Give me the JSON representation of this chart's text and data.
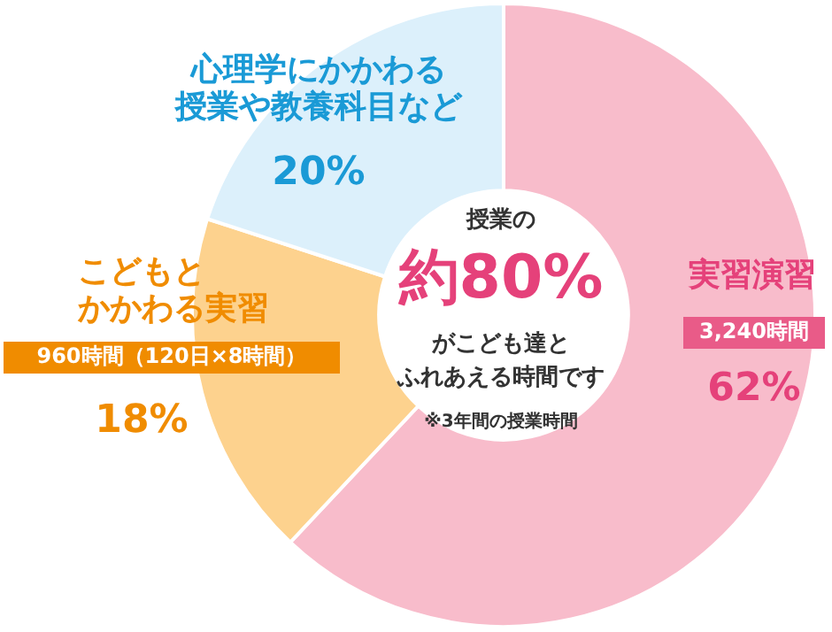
{
  "chart_data": {
    "type": "donut",
    "categories": [
      "実習演習",
      "こどもとかかわる実習",
      "心理学にかかわる授業や教養科目など"
    ],
    "values": [
      62,
      18,
      20
    ],
    "colors": [
      "#f8bccb",
      "#fdd28e",
      "#dcf0fb"
    ],
    "value_labels": [
      "62%",
      "18%",
      "20%"
    ],
    "annotations": [
      "3,240時間",
      "960時間（120日×8時間）",
      "授業の",
      "約80%",
      "がこども達と",
      "ふれあえる時間です",
      "※3年間の授業時間"
    ],
    "legend": false
  }
}
